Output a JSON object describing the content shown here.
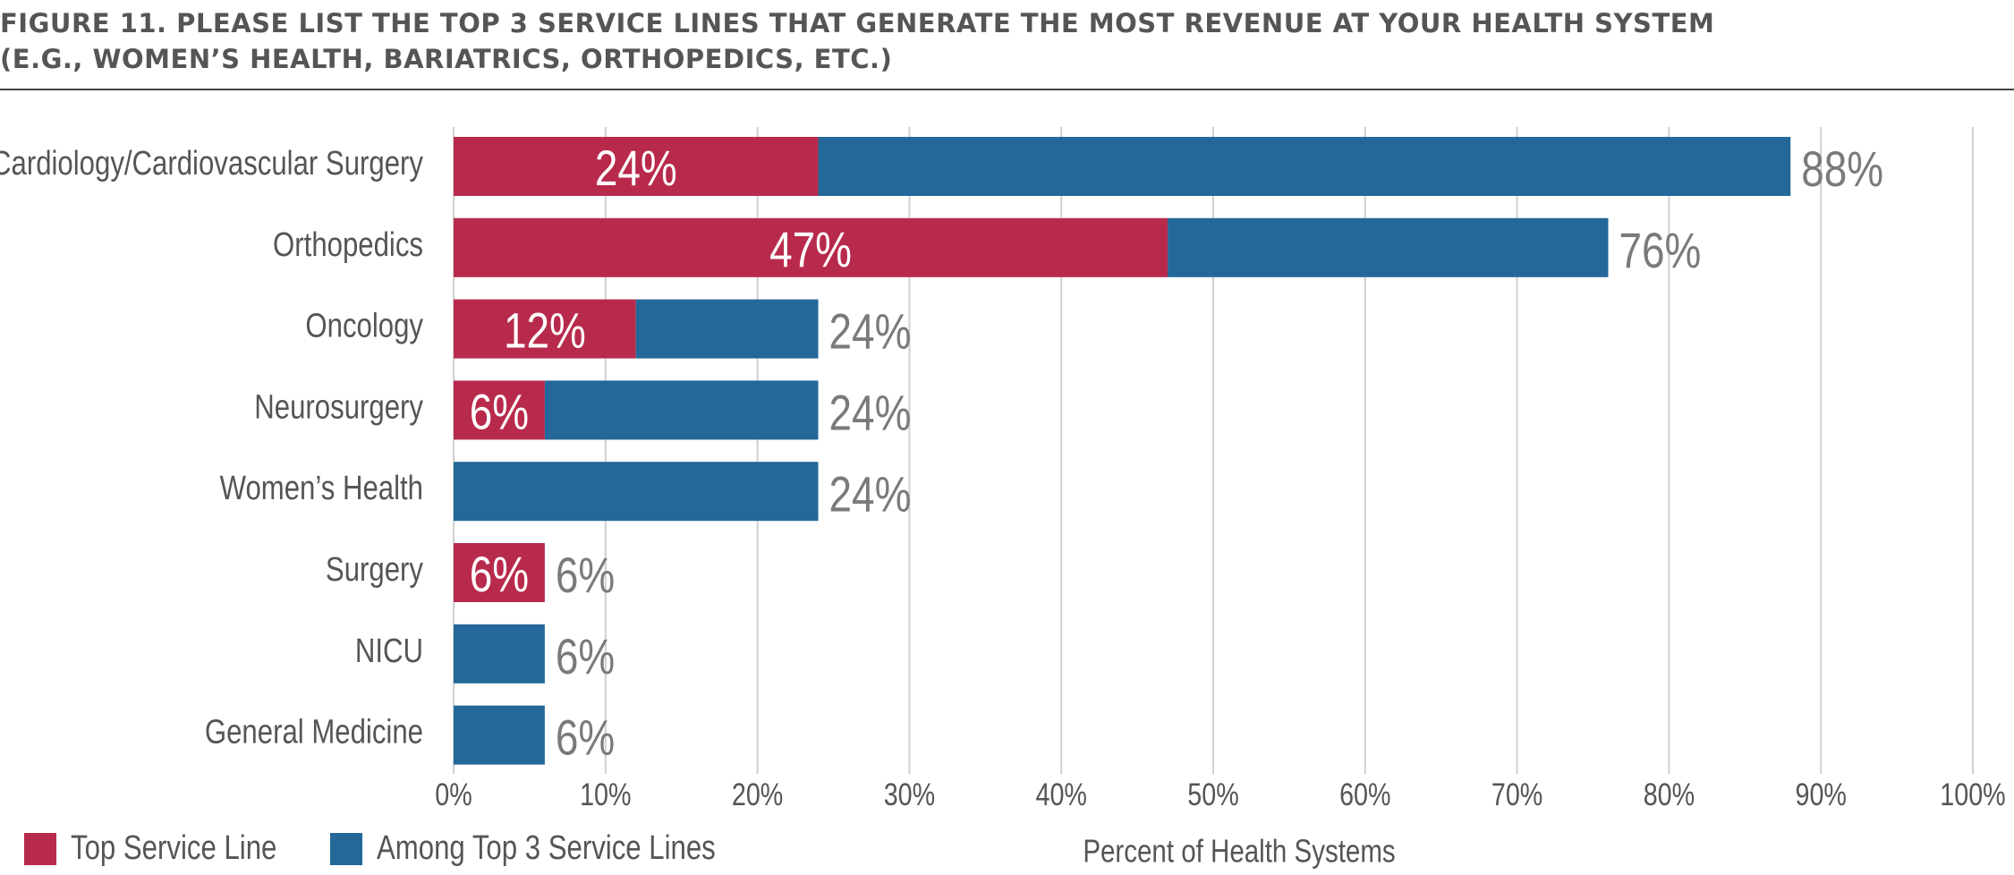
{
  "title": {
    "line1": "FIGURE 11. PLEASE LIST THE TOP 3 SERVICE LINES THAT GENERATE THE MOST REVENUE AT YOUR HEALTH SYSTEM",
    "line2": "(E.G., WOMEN’S HEALTH, BARIATRICS, ORTHOPEDICS, ETC.)"
  },
  "colors": {
    "top_service_line": "#b82a4c",
    "among_top_3": "#236899",
    "gridline": "#d0d0d0",
    "label_text": "#555555",
    "total_label_text": "#7a7a7a",
    "bar_label_text": "#ffffff"
  },
  "legend": [
    {
      "label": "Top Service Line",
      "color": "#b82a4c"
    },
    {
      "label": "Among Top 3 Service Lines",
      "color": "#236899"
    }
  ],
  "chart_data": {
    "type": "bar",
    "orientation": "horizontal",
    "stacked": true,
    "categories": [
      "Cardiology/Cardiovascular Surgery",
      "Orthopedics",
      "Oncology",
      "Neurosurgery",
      "Women’s Health",
      "Surgery",
      "NICU",
      "General Medicine"
    ],
    "series": [
      {
        "name": "Top Service Line",
        "values": [
          24,
          47,
          12,
          6,
          0,
          6,
          0,
          0
        ],
        "labels": [
          "24%",
          "47%",
          "12%",
          "6%",
          "",
          "6%",
          "",
          ""
        ]
      },
      {
        "name": "Among Top 3 Service Lines",
        "values": [
          64,
          29,
          12,
          18,
          24,
          0,
          6,
          6
        ],
        "labels": [
          "",
          "",
          "",
          "",
          "",
          "",
          "",
          ""
        ]
      }
    ],
    "totals": [
      88,
      76,
      24,
      24,
      24,
      6,
      6,
      6
    ],
    "total_labels": [
      "88%",
      "76%",
      "24%",
      "24%",
      "24%",
      "6%",
      "6%",
      "6%"
    ],
    "xlabel": "Percent of Health Systems",
    "ylabel": "",
    "xlim": [
      0,
      100
    ],
    "xticks": [
      "0%",
      "10%",
      "20%",
      "30%",
      "40%",
      "50%",
      "60%",
      "70%",
      "80%",
      "90%",
      "100%"
    ],
    "grid": true,
    "legend_position": "bottom-left"
  }
}
